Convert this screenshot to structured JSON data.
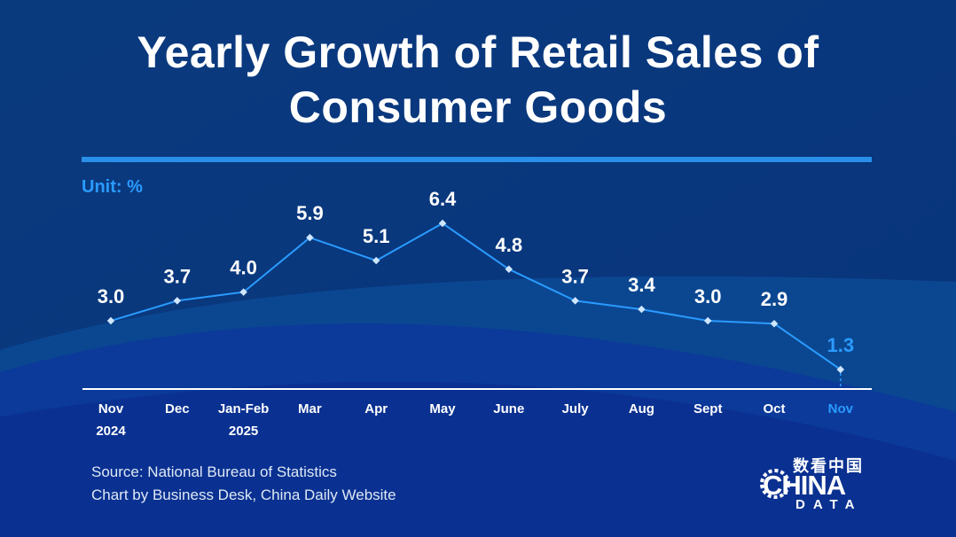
{
  "header": {
    "title_line1": "Yearly Growth of Retail Sales of",
    "title_line2": "Consumer Goods"
  },
  "unit_label": "Unit: %",
  "footer": {
    "source": "Source: National Bureau of Statistics",
    "credit": "Chart by Business Desk, China Daily Website"
  },
  "logo": {
    "cn": "数看中国",
    "main": "CHINA",
    "sub": "DATA"
  },
  "colors": {
    "background": "#0b3f86",
    "line": "#2a9bff",
    "highlight": "#2a9bff",
    "label": "#ffffff"
  },
  "chart_data": {
    "type": "line",
    "title": "Yearly Growth of Retail Sales of Consumer Goods",
    "ylabel": "Unit: %",
    "xlabel": "",
    "ylim": [
      0,
      7
    ],
    "grid": false,
    "categories": [
      [
        "Nov",
        "2024"
      ],
      [
        "Dec"
      ],
      [
        "Jan-Feb",
        "2025"
      ],
      [
        "Mar"
      ],
      [
        "Apr"
      ],
      [
        "May"
      ],
      [
        "June"
      ],
      [
        "July"
      ],
      [
        "Aug"
      ],
      [
        "Sept"
      ],
      [
        "Oct"
      ],
      [
        "Nov"
      ]
    ],
    "values": [
      3.0,
      3.7,
      4.0,
      5.9,
      5.1,
      6.4,
      4.8,
      3.7,
      3.4,
      3.0,
      2.9,
      1.3
    ],
    "value_labels": [
      "3.0",
      "3.7",
      "4.0",
      "5.9",
      "5.1",
      "6.4",
      "4.8",
      "3.7",
      "3.4",
      "3.0",
      "2.9",
      "1.3"
    ],
    "highlight_index": 11
  }
}
